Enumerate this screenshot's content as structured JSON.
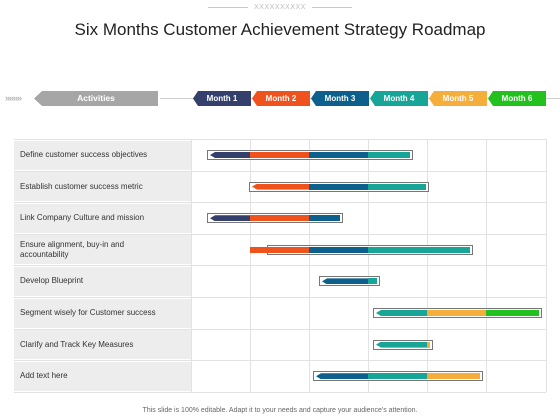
{
  "watermark": "XXXXXXXXXX",
  "title": "Six Months Customer Achievement Strategy Roadmap",
  "header": {
    "chevrons": "»»»»",
    "activities_label": "Activities",
    "months": [
      {
        "label": "Month 1",
        "color": "#343f6b"
      },
      {
        "label": "Month 2",
        "color": "#f0521e"
      },
      {
        "label": "Month 3",
        "color": "#0d5f8c"
      },
      {
        "label": "Month 4",
        "color": "#17a597"
      },
      {
        "label": "Month 5",
        "color": "#f5ad3b"
      },
      {
        "label": "Month 6",
        "color": "#22c11d"
      }
    ]
  },
  "rows": [
    {
      "label": "Define customer success objectives",
      "bars": [
        1,
        2,
        3,
        4
      ]
    },
    {
      "label": "Establish customer success metric",
      "bars": [
        2,
        3,
        4
      ]
    },
    {
      "label": "Link Company Culture and mission",
      "bars": [
        1,
        2,
        3
      ]
    },
    {
      "label": "Ensure alignment, buy-in and accountability",
      "bars": [
        1,
        2,
        3,
        4
      ]
    },
    {
      "label": "Develop Blueprint",
      "bars": [
        3,
        4
      ]
    },
    {
      "label": "Segment wisely for Customer success",
      "bars": [
        4,
        5,
        6
      ]
    },
    {
      "label": "Clarify and Track Key Measures",
      "bars": [
        4,
        5
      ]
    },
    {
      "label": "Add text here",
      "bars": [
        3,
        4,
        5
      ]
    }
  ],
  "footer": "This slide is 100% editable. Adapt it to your needs and capture your audience's attention."
}
